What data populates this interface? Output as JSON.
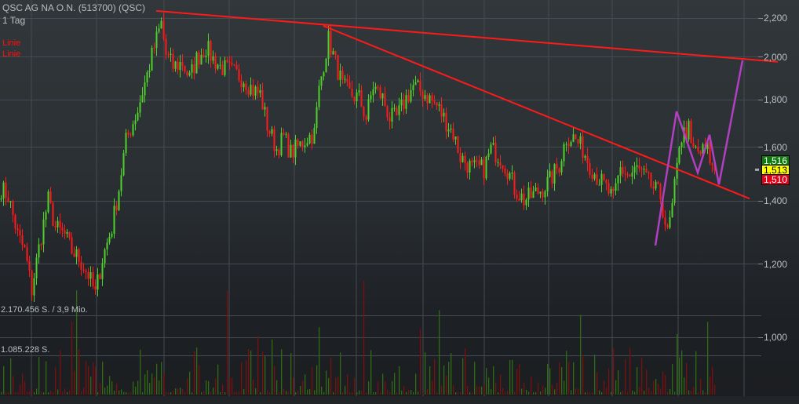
{
  "header": {
    "title": "QSC AG NA O.N. (513700) (QSC)",
    "period": "1 Tag"
  },
  "legend": [
    {
      "label": "Linie",
      "color": "#ff1010"
    },
    {
      "label": "Linie",
      "color": "#ff1010"
    }
  ],
  "volume_labels": {
    "upper": "2.170.456 S. / 3,9 Mio.",
    "lower": "1.085.228 S."
  },
  "price_badges": [
    {
      "label": "1,516",
      "bg": "#0d7a0d",
      "fg": "#ffffff"
    },
    {
      "label": "1,513",
      "bg": "#ffff00",
      "fg": "#000000"
    },
    {
      "label": "1,510",
      "bg": "#e0001a",
      "fg": "#ffffff"
    }
  ],
  "colors": {
    "up": "#4fd12a",
    "down": "#ff1a1a",
    "vol_up": "#2f6b12",
    "vol_down": "#7a1010",
    "trendline": "#ff1a1a",
    "pattern": "#b040c0"
  },
  "chart_data": {
    "type": "candlestick",
    "yscale": "log",
    "ylim": [
      950,
      2260
    ],
    "yticks": [
      "2,200",
      "2,000",
      "1,800",
      "1,600",
      "1,400",
      "1,200",
      "1,000"
    ],
    "ytick_values": [
      2200,
      2000,
      1800,
      1600,
      1400,
      1200,
      1000
    ],
    "grid": true,
    "close_path_bar_price": [
      [
        0,
        1445
      ],
      [
        3,
        1417
      ],
      [
        7,
        1287
      ],
      [
        10,
        1238
      ],
      [
        13,
        1124
      ],
      [
        17,
        1287
      ],
      [
        20,
        1404
      ],
      [
        23,
        1312
      ],
      [
        27,
        1287
      ],
      [
        30,
        1238
      ],
      [
        33,
        1215
      ],
      [
        37,
        1168
      ],
      [
        40,
        1113
      ],
      [
        43,
        1215
      ],
      [
        47,
        1312
      ],
      [
        50,
        1445
      ],
      [
        53,
        1623
      ],
      [
        58,
        1754
      ],
      [
        62,
        1914
      ],
      [
        65,
        2048
      ],
      [
        68,
        2170
      ],
      [
        70,
        2009
      ],
      [
        73,
        1951
      ],
      [
        77,
        1970
      ],
      [
        80,
        1895
      ],
      [
        83,
        1989
      ],
      [
        87,
        2048
      ],
      [
        90,
        1989
      ],
      [
        93,
        1951
      ],
      [
        97,
        1932
      ],
      [
        100,
        1914
      ],
      [
        103,
        1895
      ],
      [
        107,
        1841
      ],
      [
        110,
        1824
      ],
      [
        113,
        1688
      ],
      [
        117,
        1592
      ],
      [
        120,
        1639
      ],
      [
        123,
        1577
      ],
      [
        127,
        1608
      ],
      [
        130,
        1639
      ],
      [
        133,
        1655
      ],
      [
        135,
        1841
      ],
      [
        137,
        1970
      ],
      [
        139,
        2088
      ],
      [
        142,
        1970
      ],
      [
        145,
        1859
      ],
      [
        148,
        1824
      ],
      [
        152,
        1806
      ],
      [
        155,
        1720
      ],
      [
        158,
        1859
      ],
      [
        162,
        1806
      ],
      [
        165,
        1720
      ],
      [
        168,
        1720
      ],
      [
        172,
        1806
      ],
      [
        175,
        1859
      ],
      [
        180,
        1824
      ],
      [
        185,
        1772
      ],
      [
        188,
        1720
      ],
      [
        192,
        1655
      ],
      [
        195,
        1562
      ],
      [
        200,
        1517
      ],
      [
        205,
        1517
      ],
      [
        208,
        1592
      ],
      [
        212,
        1562
      ],
      [
        215,
        1517
      ],
      [
        218,
        1445
      ],
      [
        222,
        1404
      ],
      [
        225,
        1417
      ],
      [
        230,
        1445
      ],
      [
        233,
        1473
      ],
      [
        237,
        1532
      ],
      [
        240,
        1639
      ],
      [
        243,
        1639
      ],
      [
        247,
        1592
      ],
      [
        250,
        1532
      ],
      [
        253,
        1488
      ],
      [
        257,
        1445
      ],
      [
        260,
        1404
      ],
      [
        263,
        1517
      ],
      [
        267,
        1488
      ],
      [
        270,
        1517
      ],
      [
        273,
        1488
      ],
      [
        277,
        1445
      ],
      [
        280,
        1417
      ],
      [
        283,
        1287
      ],
      [
        285,
        1377
      ],
      [
        287,
        1517
      ],
      [
        288,
        1623
      ],
      [
        290,
        1655
      ],
      [
        292,
        1672
      ],
      [
        293,
        1592
      ],
      [
        297,
        1577
      ],
      [
        300,
        1592
      ],
      [
        302,
        1517
      ],
      [
        303,
        1510
      ]
    ],
    "trendlines": [
      {
        "from": [
          66,
          2239
        ],
        "to": [
          330,
          1975
        ]
      },
      {
        "from": [
          137,
          2158
        ],
        "to": [
          318,
          1409
        ]
      }
    ],
    "pattern_line": [
      [
        278,
        1255
      ],
      [
        287,
        1747
      ],
      [
        296,
        1502
      ],
      [
        301,
        1649
      ],
      [
        305,
        1459
      ],
      [
        315,
        1982
      ]
    ],
    "last_price": 1513
  }
}
